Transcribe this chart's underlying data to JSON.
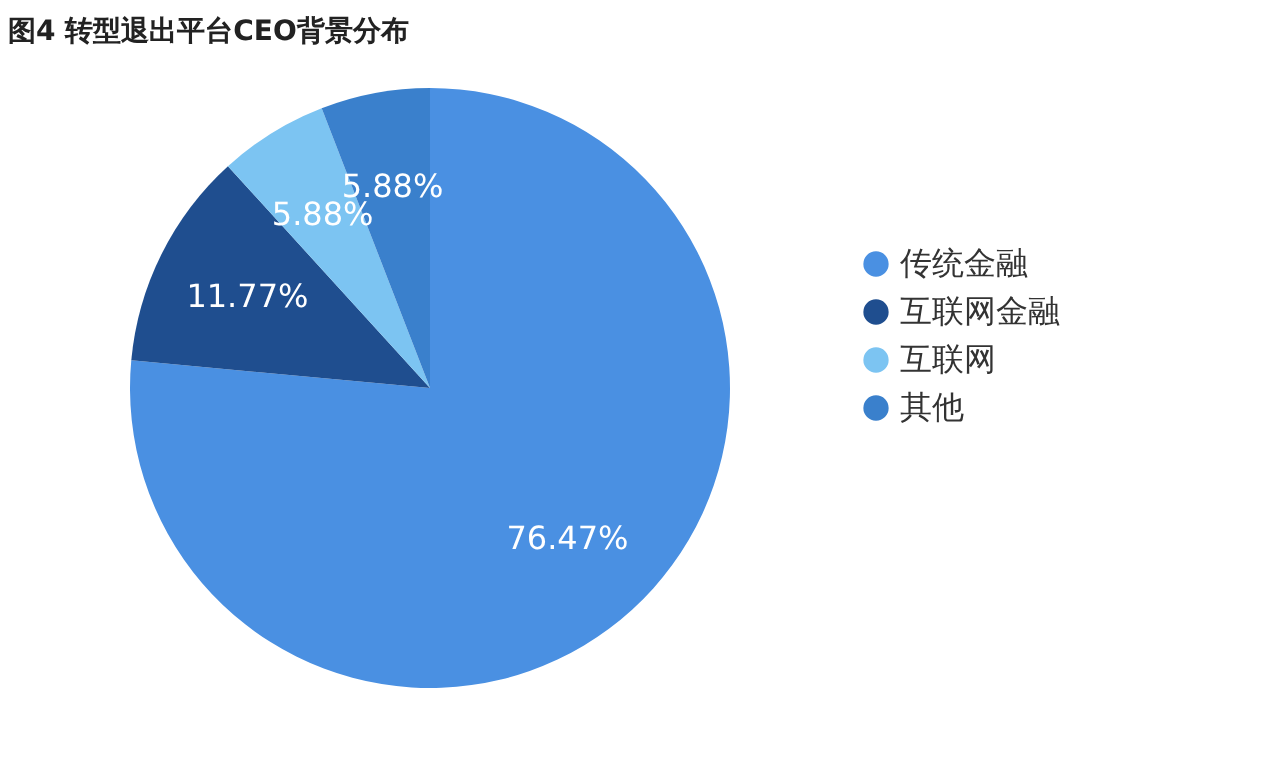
{
  "chart_data": {
    "type": "pie",
    "title": "图4 转型退出平台CEO背景分布",
    "categories": [
      "传统金融",
      "互联网金融",
      "互联网",
      "其他"
    ],
    "values": [
      76.47,
      11.77,
      5.88,
      5.88
    ],
    "value_labels": [
      "76.47%",
      "11.77%",
      "5.88%",
      "5.88%"
    ],
    "colors": [
      "#4a90e2",
      "#1f4e8f",
      "#7cc4f2",
      "#3a80cc"
    ],
    "legend": "right"
  }
}
